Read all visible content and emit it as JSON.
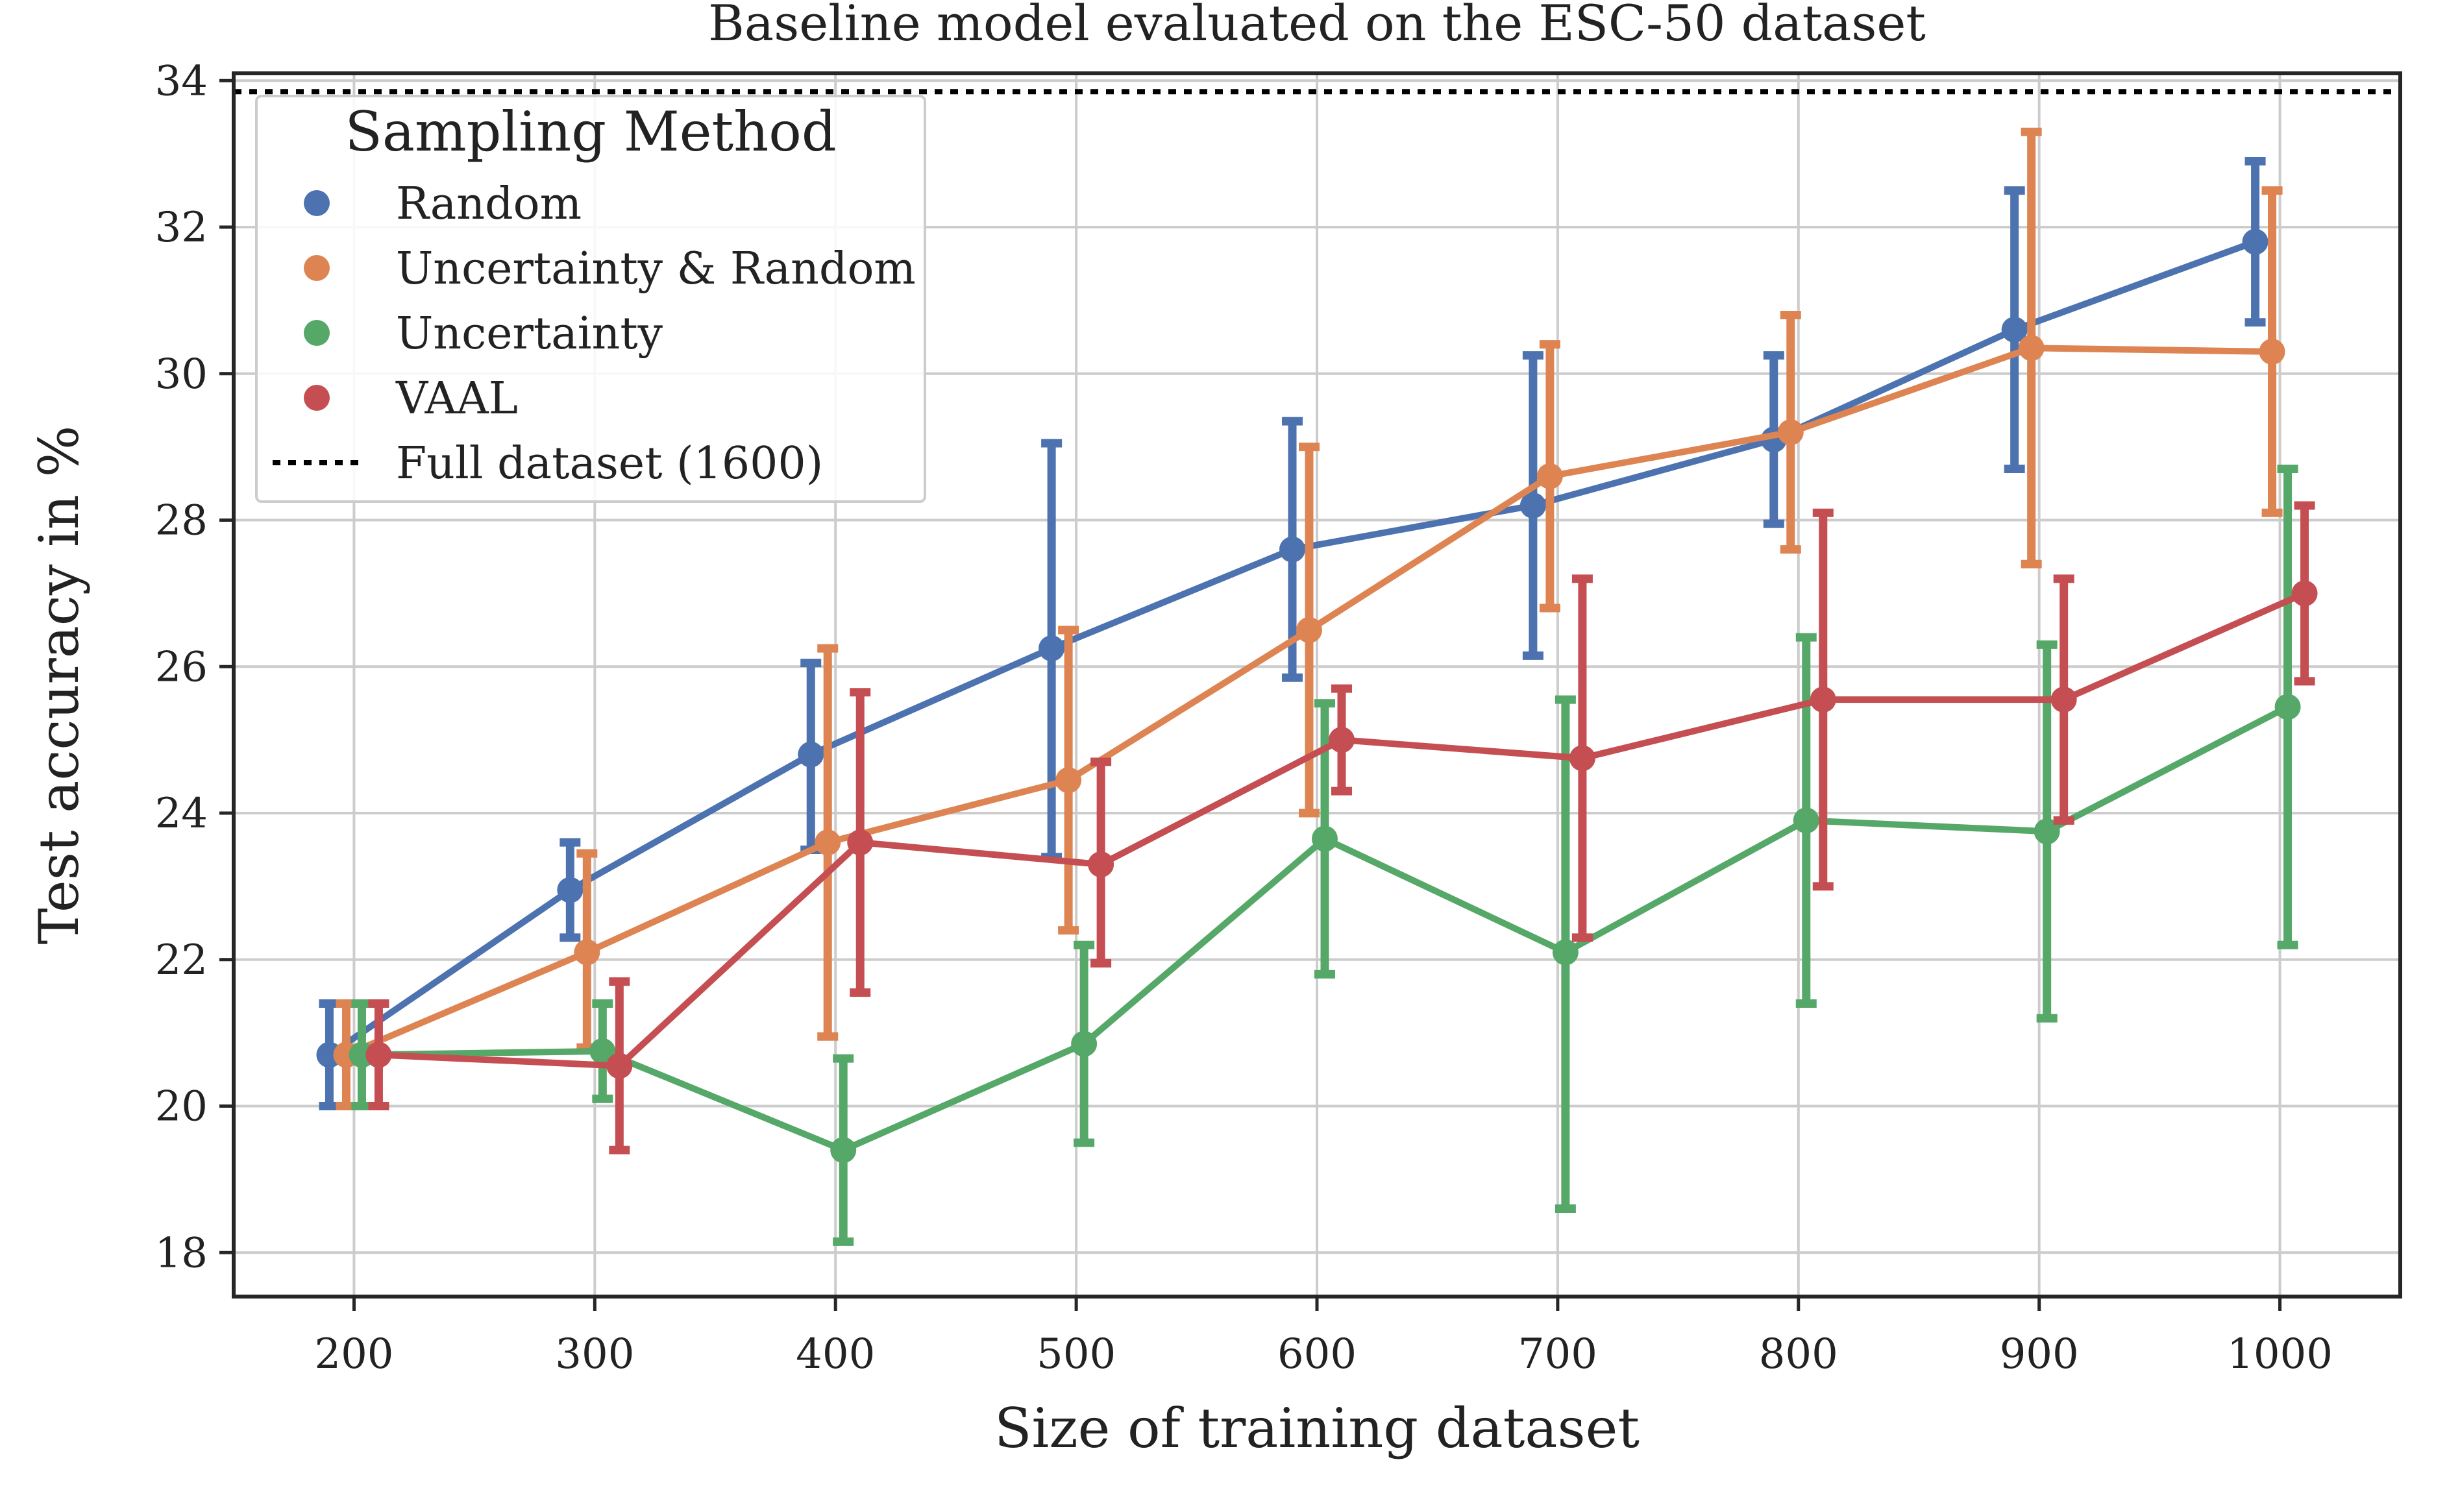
{
  "chart_data": {
    "type": "line",
    "title": "Baseline model evaluated on the ESC-50 dataset",
    "xlabel": "Size of training dataset",
    "ylabel": "Test accuracy in %",
    "x": [
      200,
      300,
      400,
      500,
      600,
      700,
      800,
      900,
      1000
    ],
    "xlim": [
      150,
      1050
    ],
    "ylim": [
      17.4,
      34.1
    ],
    "xticks": [
      200,
      300,
      400,
      500,
      600,
      700,
      800,
      900,
      1000
    ],
    "yticks": [
      18,
      20,
      22,
      24,
      26,
      28,
      30,
      32,
      34
    ],
    "grid": true,
    "legend": {
      "title": "Sampling Method",
      "placement": "top-left"
    },
    "series": [
      {
        "name": "Random",
        "color": "#4c72b0",
        "values": [
          20.7,
          22.95,
          24.8,
          26.25,
          27.6,
          28.2,
          29.1,
          30.6,
          31.8
        ],
        "err_low": [
          20.0,
          22.3,
          23.5,
          23.4,
          25.85,
          26.15,
          27.95,
          28.7,
          30.7
        ],
        "err_high": [
          21.4,
          23.6,
          26.05,
          29.05,
          29.35,
          30.25,
          30.25,
          32.5,
          32.9
        ]
      },
      {
        "name": "Uncertainty & Random",
        "color": "#dd8452",
        "values": [
          20.7,
          22.1,
          23.6,
          24.45,
          26.5,
          28.6,
          29.2,
          30.35,
          30.3
        ],
        "err_low": [
          20.0,
          20.8,
          20.95,
          22.4,
          24.0,
          26.8,
          27.6,
          27.4,
          28.1
        ],
        "err_high": [
          21.4,
          23.45,
          26.25,
          26.5,
          29.0,
          30.4,
          30.8,
          33.3,
          32.5
        ]
      },
      {
        "name": "Uncertainty",
        "color": "#55a868",
        "values": [
          20.7,
          20.75,
          19.4,
          20.85,
          23.65,
          22.1,
          23.9,
          23.75,
          25.45
        ],
        "err_low": [
          20.0,
          20.1,
          18.15,
          19.5,
          21.8,
          18.6,
          21.4,
          21.2,
          22.2
        ],
        "err_high": [
          21.4,
          21.4,
          20.65,
          22.2,
          25.5,
          25.55,
          26.4,
          26.3,
          28.7
        ]
      },
      {
        "name": "VAAL",
        "color": "#c44e52",
        "values": [
          20.7,
          20.55,
          23.6,
          23.3,
          25.0,
          24.75,
          25.55,
          25.55,
          27.0
        ],
        "err_low": [
          20.0,
          19.4,
          21.55,
          21.95,
          24.3,
          22.3,
          23.0,
          23.9,
          25.8
        ],
        "err_high": [
          21.4,
          21.7,
          25.65,
          24.7,
          25.7,
          27.2,
          28.1,
          27.2,
          28.2
        ]
      }
    ],
    "reference_line": {
      "name": "Full dataset (1600)",
      "value": 33.85,
      "style": "dotted",
      "color": "#000000"
    }
  }
}
